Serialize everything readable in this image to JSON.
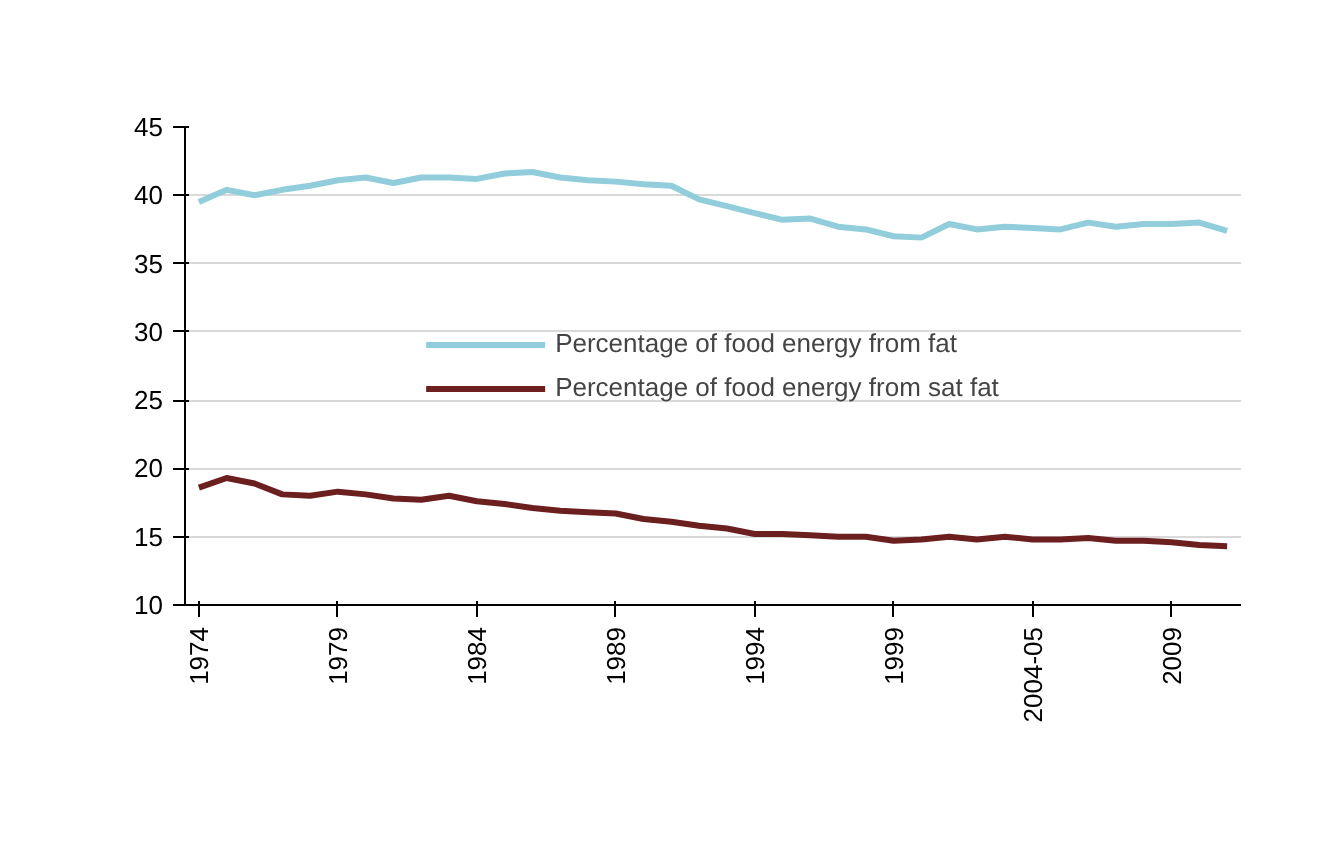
{
  "chart_data": {
    "type": "line",
    "categories": [
      "1974",
      null,
      null,
      null,
      null,
      "1979",
      null,
      null,
      null,
      null,
      "1984",
      null,
      null,
      null,
      null,
      "1989",
      null,
      null,
      null,
      null,
      "1994",
      null,
      null,
      null,
      null,
      "1999",
      null,
      null,
      null,
      null,
      "2004-05",
      null,
      null,
      null,
      null,
      "2009",
      null,
      null
    ],
    "series": [
      {
        "name": "Percentage of food energy from fat",
        "color": "#92cddc",
        "values": [
          39.5,
          40.4,
          40.0,
          40.4,
          40.7,
          41.1,
          41.3,
          40.9,
          41.3,
          41.3,
          41.2,
          41.6,
          41.7,
          41.3,
          41.1,
          41.0,
          40.8,
          40.7,
          39.7,
          39.2,
          38.7,
          38.2,
          38.3,
          37.7,
          37.5,
          37.0,
          36.9,
          37.9,
          37.5,
          37.7,
          37.6,
          37.5,
          38.0,
          37.7,
          37.9,
          37.9,
          38.0,
          37.4
        ]
      },
      {
        "name": "Percentage of food energy from sat fat",
        "color": "#6b1f1f",
        "values": [
          18.6,
          19.3,
          18.9,
          18.1,
          18.0,
          18.3,
          18.1,
          17.8,
          17.7,
          18.0,
          17.6,
          17.4,
          17.1,
          16.9,
          16.8,
          16.7,
          16.3,
          16.1,
          15.8,
          15.6,
          15.2,
          15.2,
          15.1,
          15.0,
          15.0,
          14.7,
          14.8,
          15.0,
          14.8,
          15.0,
          14.8,
          14.8,
          14.9,
          14.7,
          14.7,
          14.6,
          14.4,
          14.3
        ]
      }
    ],
    "ylim": [
      10,
      45
    ],
    "yticks": [
      10,
      15,
      20,
      25,
      30,
      35,
      40,
      45
    ],
    "grid": "y",
    "legend": "center",
    "marker": "none",
    "line_style": "solid"
  }
}
